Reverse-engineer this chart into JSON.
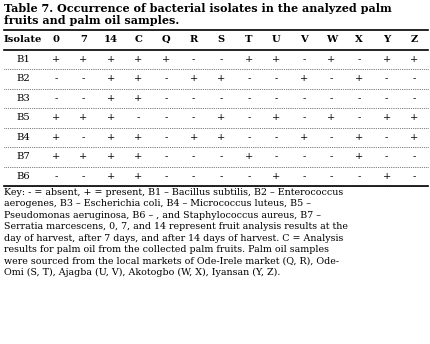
{
  "title_line1": "Table 7. Occurrence of bacterial isolates in the analyzed palm",
  "title_line2": "fruits and palm oil samples.",
  "headers": [
    "Isolate",
    "0",
    "7",
    "14",
    "C",
    "Q",
    "R",
    "S",
    "T",
    "U",
    "V",
    "W",
    "X",
    "Y",
    "Z"
  ],
  "rows": [
    [
      "B1",
      "+",
      "+",
      "+",
      "+",
      "+",
      "-",
      "-",
      "+",
      "+",
      "-",
      "+",
      "-",
      "+",
      "+"
    ],
    [
      "B2",
      "-",
      "-",
      "+",
      "+",
      "-",
      "+",
      "+",
      "-",
      "-",
      "+",
      "-",
      "+",
      "-",
      "-"
    ],
    [
      "B3",
      "-",
      "-",
      "+",
      "+",
      "-",
      "-",
      "-",
      "-",
      "-",
      "-",
      "-",
      "-",
      "-",
      "-"
    ],
    [
      "B5",
      "+",
      "+",
      "+",
      "-",
      "-",
      "-",
      "+",
      "-",
      "+",
      "-",
      "+",
      "-",
      "+",
      "+"
    ],
    [
      "B4",
      "+",
      "-",
      "+",
      "+",
      "-",
      "+",
      "+",
      "-",
      "-",
      "+",
      "-",
      "+",
      "-",
      "+"
    ],
    [
      "B7",
      "+",
      "+",
      "+",
      "+",
      "-",
      "-",
      "-",
      "+",
      "-",
      "-",
      "-",
      "+",
      "-",
      "-"
    ],
    [
      "B6",
      "-",
      "-",
      "+",
      "+",
      "-",
      "-",
      "-",
      "-",
      "+",
      "-",
      "-",
      "-",
      "+",
      "-"
    ]
  ],
  "key_text": "Key: - = absent, + = present, B1 – Bacillus subtilis, B2 – Enterococcus\naerogenes, B3 – Escherichia coli, B4 – Micrococcus luteus, B5 –\nPseudomonas aeruginosa, B6 – , and Staphylococcus aureus, B7 –\nSerratia marcescens, 0, 7, and 14 represent fruit analysis results at the\nday of harvest, after 7 days, and after 14 days of harvest. C = Analysis\nresults for palm oil from the collected palm fruits. Palm oil samples\nwere sourced from the local markets of Ode-Irele market (Q, R), Ode-\nOmi (S, T), Ajagba (U, V), Akotogbo (W, X), Iyansan (Y, Z).",
  "bg_color": "#ffffff",
  "text_color": "#000000",
  "font_family": "DejaVu Serif",
  "font_size": 7.2,
  "title_font_size": 8.0,
  "key_font_size": 6.8
}
